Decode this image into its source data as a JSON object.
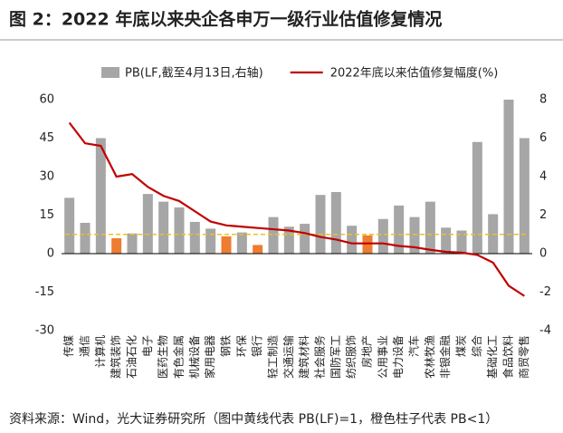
{
  "chart_data": {
    "type": "bar-line",
    "title": "图 2：2022 年底以来央企各申万一级行业估值修复情况",
    "source": "资料来源：Wind，光大证券研究所（图中黄线代表 PB(LF)=1，橙色柱子代表 PB<1）",
    "categories": [
      "传媒",
      "通信",
      "计算机",
      "建筑装饰",
      "石油石化",
      "电子",
      "医药生物",
      "有色金属",
      "机械设备",
      "家用电器",
      "钢铁",
      "环保",
      "银行",
      "轻工制造",
      "交通运输",
      "建筑材料",
      "社会服务",
      "国防军工",
      "纺织服饰",
      "房地产",
      "公用事业",
      "电力设备",
      "汽车",
      "农林牧渔",
      "非银金融",
      "煤炭",
      "综合",
      "基础化工",
      "食品饮料",
      "商贸零售"
    ],
    "series": [
      {
        "name": "PB(LF,截至4月13日,右轴)",
        "kind": "bar",
        "axis": "y2",
        "color": "#a6a6a6",
        "colors": [
          "#a6a6a6",
          "#a6a6a6",
          "#a6a6a6",
          "#ed7d31",
          "#a6a6a6",
          "#a6a6a6",
          "#a6a6a6",
          "#a6a6a6",
          "#a6a6a6",
          "#a6a6a6",
          "#ed7d31",
          "#a6a6a6",
          "#ed7d31",
          "#a6a6a6",
          "#a6a6a6",
          "#a6a6a6",
          "#a6a6a6",
          "#a6a6a6",
          "#a6a6a6",
          "#ed7d31",
          "#a6a6a6",
          "#a6a6a6",
          "#a6a6a6",
          "#a6a6a6",
          "#a6a6a6",
          "#a6a6a6",
          "#a6a6a6",
          "#a6a6a6",
          "#a6a6a6",
          "#a6a6a6"
        ],
        "values": [
          2.9,
          1.6,
          6.0,
          0.8,
          1.05,
          3.1,
          2.7,
          2.4,
          1.65,
          1.3,
          0.9,
          1.1,
          0.45,
          1.9,
          1.4,
          1.55,
          3.05,
          3.2,
          1.45,
          0.95,
          1.8,
          2.5,
          1.9,
          2.7,
          1.35,
          1.2,
          5.8,
          2.05,
          8.0,
          6.0
        ]
      },
      {
        "name": "2022年底以来估值修复幅度(%)",
        "kind": "line",
        "axis": "y",
        "color": "#c00000",
        "values": [
          51,
          43,
          42,
          30,
          31,
          26,
          22.5,
          20.5,
          16.5,
          12.5,
          11,
          10.5,
          10,
          9.5,
          9,
          8,
          6.5,
          5.5,
          4,
          4,
          4,
          3,
          2.5,
          1.5,
          0.7,
          0.4,
          -0.5,
          -3.5,
          -12.5,
          -16.5
        ]
      }
    ],
    "reference_line": {
      "value": 1,
      "axis": "y2",
      "color": "#f0c020"
    },
    "ylim": [
      -30,
      60
    ],
    "yticks": [
      -30,
      -15,
      0,
      15,
      30,
      45,
      60
    ],
    "y2lim": [
      -4,
      8
    ],
    "y2ticks": [
      -4,
      -2,
      0,
      2,
      4,
      6,
      8
    ]
  }
}
